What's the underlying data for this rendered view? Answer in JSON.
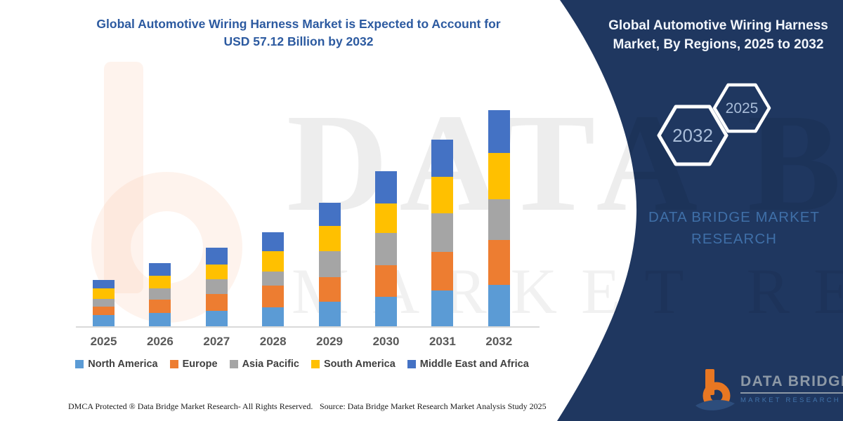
{
  "header": {
    "title_line1": "Global Automotive Wiring Harness Market is Expected to Account for",
    "title_line2": "USD 57.12 Billion by 2032"
  },
  "panel": {
    "bg_color": "#1f3760",
    "title_line1": "Global Automotive Wiring Harness",
    "title_line2": "Market, By Regions, 2025 to 2032",
    "hexagons": [
      {
        "label": "2032"
      },
      {
        "label": "2025"
      }
    ],
    "brand_line1": "DATA BRIDGE MARKET",
    "brand_line2": "RESEARCH",
    "logo": {
      "name": "DATA BRIDGE",
      "subname": "MARKET  RESEARCH"
    }
  },
  "footer": {
    "left": "DMCA Protected ® Data Bridge Market Research-  All Rights Reserved.",
    "right": "Source: Data Bridge Market Research  Market Analysis Study 2025"
  },
  "chart_data": {
    "type": "bar",
    "stacked": true,
    "unit": "USD Billion",
    "title": "Global Automotive Wiring Harness Market is Expected to Account for USD 57.12 Billion by 2032",
    "xlabel": "",
    "ylabel": "",
    "ylim": [
      0,
      60
    ],
    "grid": false,
    "y_axis_visible": false,
    "legend_position": "bottom",
    "categories": [
      "2025",
      "2026",
      "2027",
      "2028",
      "2029",
      "2030",
      "2031",
      "2032"
    ],
    "totals": [
      12.2,
      16.6,
      20.8,
      24.9,
      32.6,
      41.0,
      49.3,
      57.1
    ],
    "series": [
      {
        "name": "North America",
        "color": "#5B9BD5",
        "values": [
          2.9,
          3.6,
          4.0,
          5.1,
          6.5,
          7.7,
          9.4,
          11.0
        ]
      },
      {
        "name": "Europe",
        "color": "#ED7D31",
        "values": [
          2.3,
          3.4,
          4.6,
          5.6,
          6.5,
          8.5,
          10.3,
          11.7
        ]
      },
      {
        "name": "Asia Pacific",
        "color": "#A5A5A5",
        "values": [
          2.0,
          3.0,
          3.9,
          3.7,
          6.9,
          8.5,
          10.1,
          10.9
        ]
      },
      {
        "name": "South America",
        "color": "#FFC000",
        "values": [
          2.8,
          3.3,
          3.8,
          5.4,
          6.6,
          7.7,
          9.7,
          12.1
        ]
      },
      {
        "name": "Middle East and Africa",
        "color": "#4472C4",
        "values": [
          2.2,
          3.3,
          4.5,
          5.1,
          6.1,
          8.6,
          9.8,
          11.4
        ]
      }
    ],
    "watermark_row1": "DATA BRIDGE",
    "watermark_row2": "MARKET RESEARCH"
  }
}
